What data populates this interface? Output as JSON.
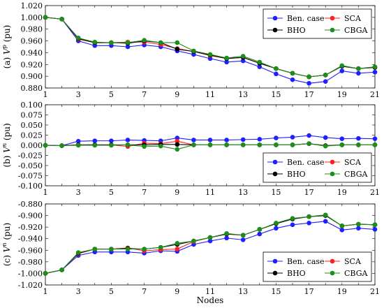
{
  "x_axis_label": "Nodes",
  "colors": {
    "Ben. case": "#1f1fff",
    "SCA": "#ff1f1f",
    "BHO": "#000000",
    "CBGA": "#1a8f1a"
  },
  "chart_data": [
    {
      "type": "line",
      "ylabel_prefix": "(a) ",
      "ylabel_var": "V",
      "ylabel_sup": "p",
      "ylabel_unit": " (pu)",
      "x": [
        1,
        2,
        3,
        4,
        5,
        6,
        7,
        8,
        9,
        10,
        11,
        12,
        13,
        14,
        15,
        16,
        17,
        18,
        19,
        20,
        21
      ],
      "xlim": [
        1,
        21
      ],
      "ylim": [
        0.88,
        1.02
      ],
      "xticks": [
        1,
        3,
        5,
        7,
        9,
        11,
        13,
        15,
        17,
        19,
        21
      ],
      "yticks": [
        "0.880",
        "0.900",
        "0.920",
        "0.940",
        "0.960",
        "0.980",
        "1.000",
        "1.020"
      ],
      "ytick_values": [
        0.88,
        0.9,
        0.92,
        0.94,
        0.96,
        0.98,
        1.0,
        1.02
      ],
      "legend_position": "top-right",
      "legend": [
        "Ben. case",
        "SCA",
        "BHO",
        "CBGA"
      ],
      "series": [
        {
          "name": "Ben. case",
          "values": [
            1.0,
            0.997,
            0.96,
            0.952,
            0.952,
            0.95,
            0.953,
            0.95,
            0.943,
            0.937,
            0.93,
            0.924,
            0.926,
            0.916,
            0.904,
            0.894,
            0.888,
            0.891,
            0.909,
            0.905,
            0.907
          ]
        },
        {
          "name": "SCA",
          "values": [
            1.0,
            0.997,
            0.963,
            0.957,
            0.957,
            0.958,
            0.958,
            0.954,
            0.947,
            0.942,
            0.935,
            0.93,
            0.932,
            0.922,
            0.913,
            0.905,
            0.899,
            0.902,
            0.917,
            0.913,
            0.915
          ]
        },
        {
          "name": "BHO",
          "values": [
            1.0,
            0.997,
            0.964,
            0.957,
            0.957,
            0.956,
            0.96,
            0.957,
            0.946,
            0.942,
            0.936,
            0.93,
            0.932,
            0.922,
            0.913,
            0.905,
            0.899,
            0.902,
            0.917,
            0.913,
            0.915
          ]
        },
        {
          "name": "CBGA",
          "values": [
            1.0,
            0.997,
            0.965,
            0.958,
            0.957,
            0.957,
            0.961,
            0.957,
            0.957,
            0.943,
            0.937,
            0.931,
            0.934,
            0.924,
            0.913,
            0.905,
            0.899,
            0.902,
            0.918,
            0.913,
            0.916
          ]
        }
      ]
    },
    {
      "type": "line",
      "ylabel_prefix": "(b) ",
      "ylabel_var": "V",
      "ylabel_sup": "n",
      "ylabel_unit": " (pu)",
      "x": [
        1,
        2,
        3,
        4,
        5,
        6,
        7,
        8,
        9,
        10,
        11,
        12,
        13,
        14,
        15,
        16,
        17,
        18,
        19,
        20,
        21
      ],
      "xlim": [
        1,
        21
      ],
      "ylim": [
        -0.1,
        0.1
      ],
      "xticks": [
        1,
        3,
        5,
        7,
        9,
        11,
        13,
        15,
        17,
        19,
        21
      ],
      "yticks": [
        "-0.100",
        "-0.075",
        "-0.050",
        "-0.025",
        "0.000",
        "0.025",
        "0.050",
        "0.075",
        "0.100"
      ],
      "ytick_values": [
        -0.1,
        -0.075,
        -0.05,
        -0.025,
        0.0,
        0.025,
        0.05,
        0.075,
        0.1
      ],
      "legend_position": "bottom-right",
      "legend": [
        "Ben. case",
        "SCA",
        "BHO",
        "CBGA"
      ],
      "series": [
        {
          "name": "Ben. case",
          "values": [
            0.0,
            -0.001,
            0.01,
            0.011,
            0.011,
            0.013,
            0.012,
            0.011,
            0.018,
            0.013,
            0.013,
            0.013,
            0.014,
            0.015,
            0.018,
            0.02,
            0.024,
            0.019,
            0.016,
            0.017,
            0.016
          ]
        },
        {
          "name": "SCA",
          "values": [
            0.0,
            -0.001,
            0.001,
            0.001,
            0.001,
            -0.003,
            0.005,
            0.004,
            0.01,
            0.001,
            0.001,
            0.001,
            0.001,
            0.001,
            0.001,
            0.001,
            0.004,
            -0.001,
            0.001,
            0.001,
            0.001
          ]
        },
        {
          "name": "BHO",
          "values": [
            0.0,
            -0.001,
            0.001,
            0.001,
            0.001,
            0.001,
            0.001,
            0.002,
            0.002,
            0.001,
            0.001,
            0.001,
            0.001,
            0.001,
            0.001,
            0.001,
            0.004,
            -0.001,
            0.001,
            0.001,
            0.001
          ]
        },
        {
          "name": "CBGA",
          "values": [
            0.0,
            -0.001,
            0.0,
            0.0,
            0.0,
            0.001,
            -0.003,
            -0.002,
            -0.01,
            0.001,
            0.001,
            0.001,
            0.001,
            0.001,
            0.001,
            0.001,
            0.004,
            -0.002,
            0.001,
            0.001,
            0.001
          ]
        }
      ]
    },
    {
      "type": "line",
      "ylabel_prefix": "(c) ",
      "ylabel_var": "V",
      "ylabel_sup": "n",
      "ylabel_unit": " (pu)",
      "x": [
        1,
        2,
        3,
        4,
        5,
        6,
        7,
        8,
        9,
        10,
        11,
        12,
        13,
        14,
        15,
        16,
        17,
        18,
        19,
        20,
        21
      ],
      "xlim": [
        1,
        21
      ],
      "ylim": [
        -1.02,
        -0.88
      ],
      "xticks": [
        1,
        3,
        5,
        7,
        9,
        11,
        13,
        15,
        17,
        19,
        21
      ],
      "yticks": [
        "-1.020",
        "-1.000",
        "-0.980",
        "-0.960",
        "-0.940",
        "-0.920",
        "-0.900",
        "-0.880"
      ],
      "ytick_values": [
        -1.02,
        -1.0,
        -0.98,
        -0.96,
        -0.94,
        -0.92,
        -0.9,
        -0.88
      ],
      "legend_position": "bottom-right",
      "legend": [
        "Ben. case",
        "SCA",
        "BHO",
        "CBGA"
      ],
      "series": [
        {
          "name": "Ben. case",
          "values": [
            -1.0,
            -0.994,
            -0.969,
            -0.963,
            -0.963,
            -0.963,
            -0.965,
            -0.961,
            -0.962,
            -0.95,
            -0.944,
            -0.939,
            -0.942,
            -0.932,
            -0.922,
            -0.916,
            -0.913,
            -0.91,
            -0.925,
            -0.922,
            -0.924
          ]
        },
        {
          "name": "SCA",
          "values": [
            -1.0,
            -0.994,
            -0.966,
            -0.958,
            -0.958,
            -0.956,
            -0.961,
            -0.959,
            -0.958,
            -0.945,
            -0.938,
            -0.932,
            -0.934,
            -0.924,
            -0.914,
            -0.906,
            -0.902,
            -0.9,
            -0.918,
            -0.915,
            -0.916
          ]
        },
        {
          "name": "BHO",
          "values": [
            -1.0,
            -0.994,
            -0.965,
            -0.958,
            -0.958,
            -0.957,
            -0.958,
            -0.955,
            -0.95,
            -0.944,
            -0.938,
            -0.932,
            -0.934,
            -0.924,
            -0.914,
            -0.906,
            -0.902,
            -0.9,
            -0.918,
            -0.915,
            -0.916
          ]
        },
        {
          "name": "CBGA",
          "values": [
            -1.0,
            -0.994,
            -0.964,
            -0.958,
            -0.958,
            -0.958,
            -0.958,
            -0.955,
            -0.948,
            -0.944,
            -0.938,
            -0.931,
            -0.934,
            -0.924,
            -0.913,
            -0.905,
            -0.902,
            -0.899,
            -0.918,
            -0.915,
            -0.916
          ]
        }
      ]
    }
  ]
}
